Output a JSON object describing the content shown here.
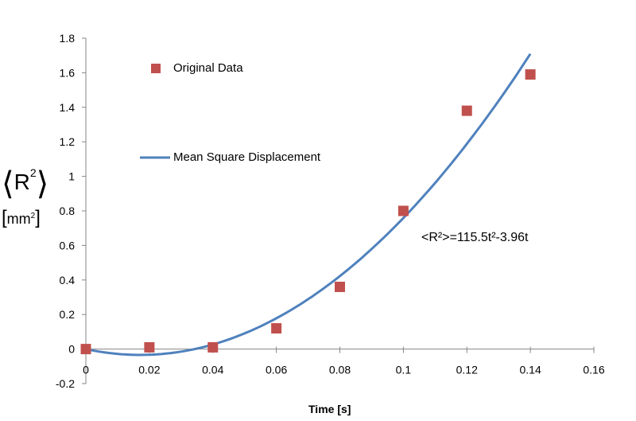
{
  "chart_data": {
    "type": "scatter",
    "title": "",
    "xlabel": "Time [s]",
    "ylabel_main": "R",
    "ylabel_sup": "2",
    "ylabel_unit": "mm",
    "ylabel_unit_sup": "2",
    "xlim": [
      0,
      0.16
    ],
    "ylim": [
      -0.2,
      1.8
    ],
    "xticks": [
      "0",
      "0.02",
      "0.04",
      "0.06",
      "0.08",
      "0.1",
      "0.12",
      "0.14",
      "0.16"
    ],
    "xtick_values": [
      0,
      0.02,
      0.04,
      0.06,
      0.08,
      0.1,
      0.12,
      0.14,
      0.16
    ],
    "yticks": [
      "-0.2",
      "0",
      "0.2",
      "0.4",
      "0.6",
      "0.8",
      "1",
      "1.2",
      "1.4",
      "1.6",
      "1.8"
    ],
    "ytick_values": [
      -0.2,
      0,
      0.2,
      0.4,
      0.6,
      0.8,
      1,
      1.2,
      1.4,
      1.6,
      1.8
    ],
    "grid": false,
    "series": [
      {
        "name": "Original Data",
        "kind": "scatter",
        "marker": "square",
        "color": "#C0504D",
        "x": [
          0,
          0.02,
          0.04,
          0.06,
          0.08,
          0.1,
          0.12,
          0.14
        ],
        "y": [
          0,
          0.01,
          0.01,
          0.12,
          0.36,
          0.8,
          1.38,
          1.59
        ]
      },
      {
        "name": "Mean Square Displacement",
        "kind": "line",
        "color": "#4F81BD",
        "formula": {
          "a": 115.5,
          "b": -3.96
        },
        "x_range": [
          0,
          0.14
        ]
      }
    ],
    "annotation": "<R²>=115.5t²-3.96t"
  }
}
